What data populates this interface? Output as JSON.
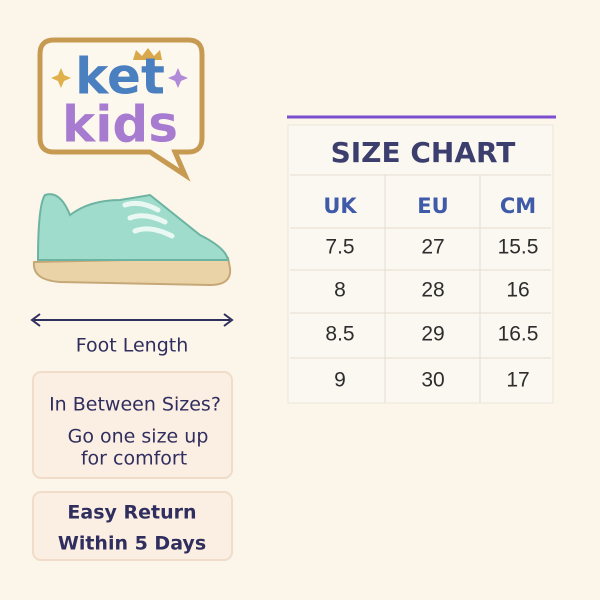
{
  "logo": {
    "line1": "ket",
    "line2": "kids"
  },
  "foot_length": "Foot Length",
  "tip": {
    "title": "In Between Sizes?",
    "line1": "Go one size up",
    "line2": "for comfort"
  },
  "returns": {
    "line1": "Easy Return",
    "line2": "Within 5 Days"
  },
  "size_chart": {
    "title": "SIZE CHART",
    "headers": [
      "UK",
      "EU",
      "CM"
    ],
    "rows": [
      [
        "7.5",
        "27",
        "15.5"
      ],
      [
        "8",
        "28",
        "16"
      ],
      [
        "8.5",
        "29",
        "16.5"
      ],
      [
        "9",
        "30",
        "17"
      ]
    ]
  }
}
